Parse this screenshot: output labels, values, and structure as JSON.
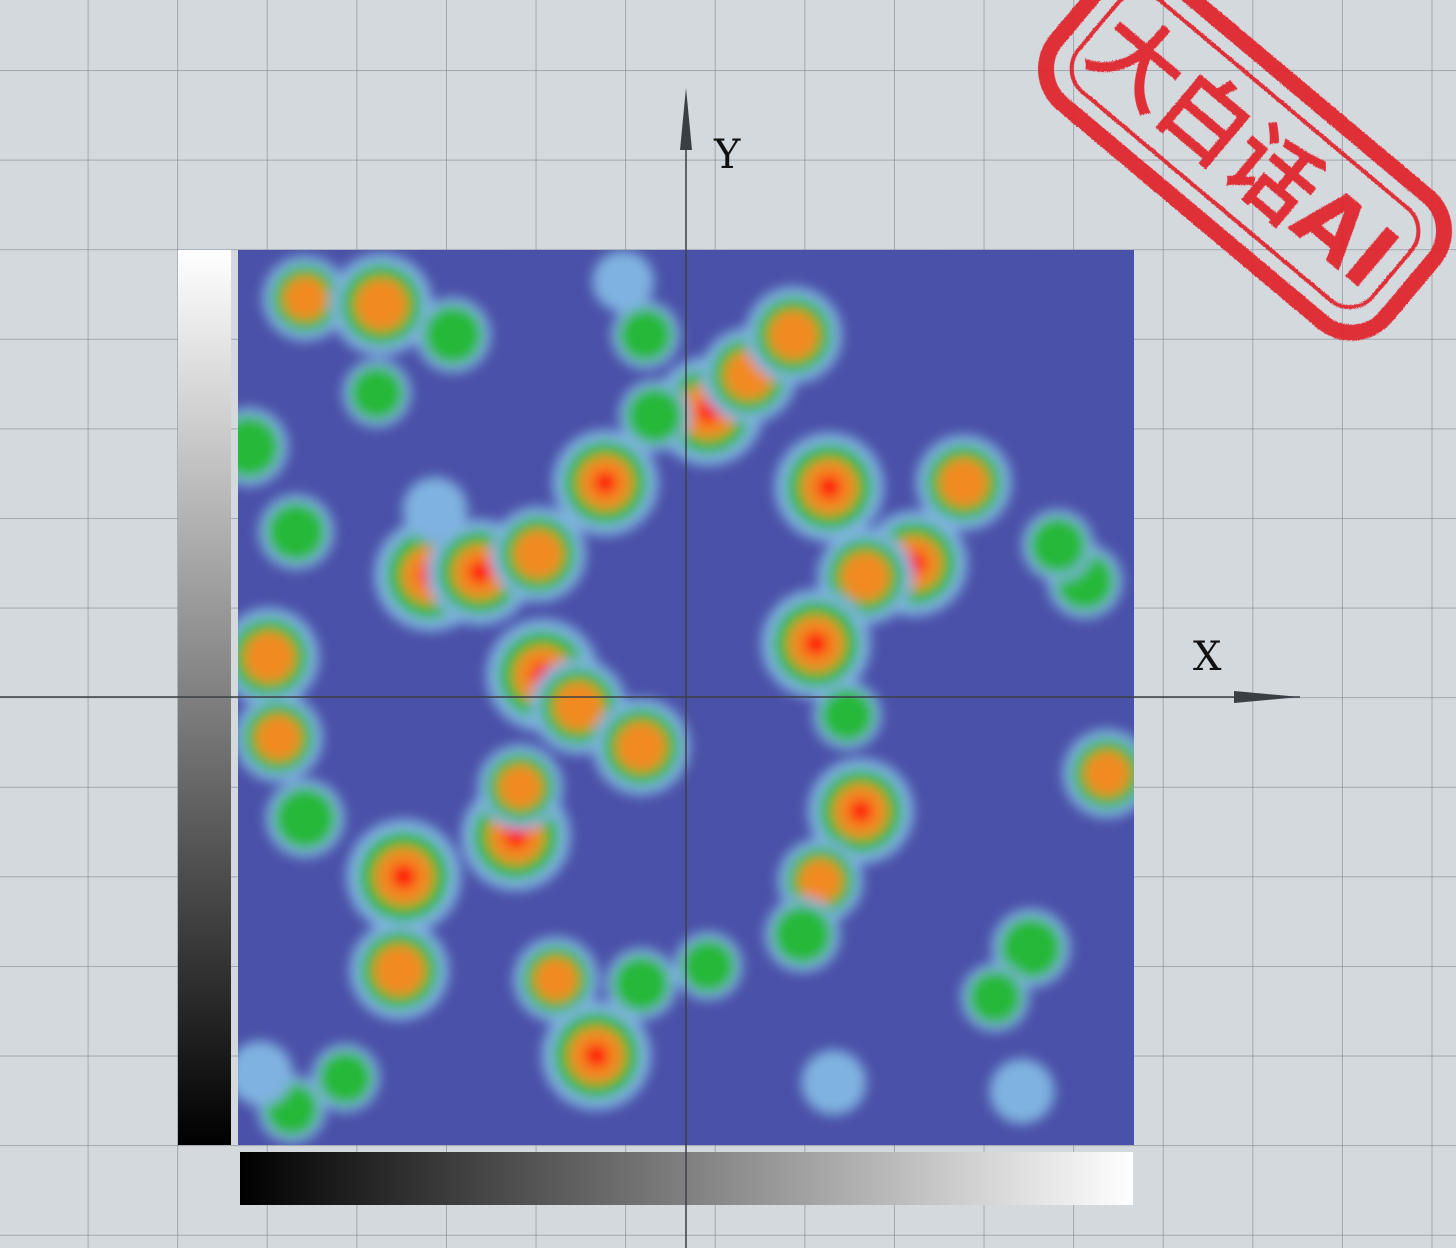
{
  "chart_data": {
    "type": "heatmap",
    "title": "",
    "xlabel": "X",
    "ylabel": "Y",
    "xlim": [
      0,
      100
    ],
    "ylim": [
      0,
      100
    ],
    "colorscale": [
      "#4a51a8",
      "#7fb2e0",
      "#25b838",
      "#f28a22",
      "#ff1010"
    ],
    "points": [
      {
        "x": 7.5,
        "y": 94.6,
        "v": 0.55
      },
      {
        "x": 16.0,
        "y": 93.9,
        "v": 0.8
      },
      {
        "x": 24.0,
        "y": 90.5,
        "v": 0.4
      },
      {
        "x": 15.5,
        "y": 84.0,
        "v": 0.3
      },
      {
        "x": 1.2,
        "y": 78.0,
        "v": 0.45
      },
      {
        "x": 6.5,
        "y": 68.5,
        "v": 0.4
      },
      {
        "x": 45.5,
        "y": 90.5,
        "v": 0.3
      },
      {
        "x": 43.0,
        "y": 96.5,
        "v": 0.2
      },
      {
        "x": 52.5,
        "y": 82.0,
        "v": 0.9
      },
      {
        "x": 57.0,
        "y": 86.0,
        "v": 0.7
      },
      {
        "x": 62.0,
        "y": 90.5,
        "v": 0.72
      },
      {
        "x": 46.5,
        "y": 81.5,
        "v": 0.35
      },
      {
        "x": 41.0,
        "y": 74.0,
        "v": 0.85
      },
      {
        "x": 21.5,
        "y": 63.7,
        "v": 0.95
      },
      {
        "x": 27.0,
        "y": 64.0,
        "v": 0.85
      },
      {
        "x": 33.5,
        "y": 66.0,
        "v": 0.7
      },
      {
        "x": 22.0,
        "y": 71.0,
        "v": 0.25
      },
      {
        "x": 3.5,
        "y": 54.5,
        "v": 0.75
      },
      {
        "x": 4.5,
        "y": 45.5,
        "v": 0.6
      },
      {
        "x": 34.0,
        "y": 52.5,
        "v": 0.95
      },
      {
        "x": 38.0,
        "y": 49.0,
        "v": 0.7
      },
      {
        "x": 45.0,
        "y": 44.5,
        "v": 0.72
      },
      {
        "x": 31.0,
        "y": 34.5,
        "v": 0.9
      },
      {
        "x": 31.5,
        "y": 40.0,
        "v": 0.55
      },
      {
        "x": 7.5,
        "y": 36.5,
        "v": 0.45
      },
      {
        "x": 18.5,
        "y": 30.0,
        "v": 0.98
      },
      {
        "x": 18.0,
        "y": 19.5,
        "v": 0.75
      },
      {
        "x": 35.5,
        "y": 18.5,
        "v": 0.55
      },
      {
        "x": 40.0,
        "y": 10.0,
        "v": 0.9
      },
      {
        "x": 45.0,
        "y": 18.0,
        "v": 0.35
      },
      {
        "x": 52.5,
        "y": 20.0,
        "v": 0.3
      },
      {
        "x": 6.0,
        "y": 4.0,
        "v": 0.3
      },
      {
        "x": 2.5,
        "y": 8.0,
        "v": 0.25
      },
      {
        "x": 12.0,
        "y": 7.5,
        "v": 0.3
      },
      {
        "x": 66.0,
        "y": 73.5,
        "v": 0.9
      },
      {
        "x": 75.5,
        "y": 65.0,
        "v": 0.85
      },
      {
        "x": 81.0,
        "y": 74.0,
        "v": 0.7
      },
      {
        "x": 70.0,
        "y": 63.5,
        "v": 0.7
      },
      {
        "x": 64.5,
        "y": 56.0,
        "v": 0.9
      },
      {
        "x": 68.0,
        "y": 48.0,
        "v": 0.3
      },
      {
        "x": 69.5,
        "y": 37.3,
        "v": 0.85
      },
      {
        "x": 65.0,
        "y": 29.5,
        "v": 0.55
      },
      {
        "x": 63.0,
        "y": 23.5,
        "v": 0.4
      },
      {
        "x": 97.0,
        "y": 41.5,
        "v": 0.6
      },
      {
        "x": 88.5,
        "y": 22.0,
        "v": 0.45
      },
      {
        "x": 84.5,
        "y": 16.5,
        "v": 0.3
      },
      {
        "x": 87.5,
        "y": 6.0,
        "v": 0.25
      },
      {
        "x": 66.5,
        "y": 7.0,
        "v": 0.25
      },
      {
        "x": 94.5,
        "y": 63.0,
        "v": 0.4
      },
      {
        "x": 91.5,
        "y": 67.0,
        "v": 0.35
      }
    ]
  },
  "axes": {
    "x_label": "X",
    "y_label": "Y"
  },
  "stamp": {
    "text": "大白话AI",
    "color": "#e0202a"
  },
  "colorbars": {
    "left": {
      "gradient": "white-to-black"
    },
    "bottom": {
      "gradient": "black-to-white"
    }
  }
}
